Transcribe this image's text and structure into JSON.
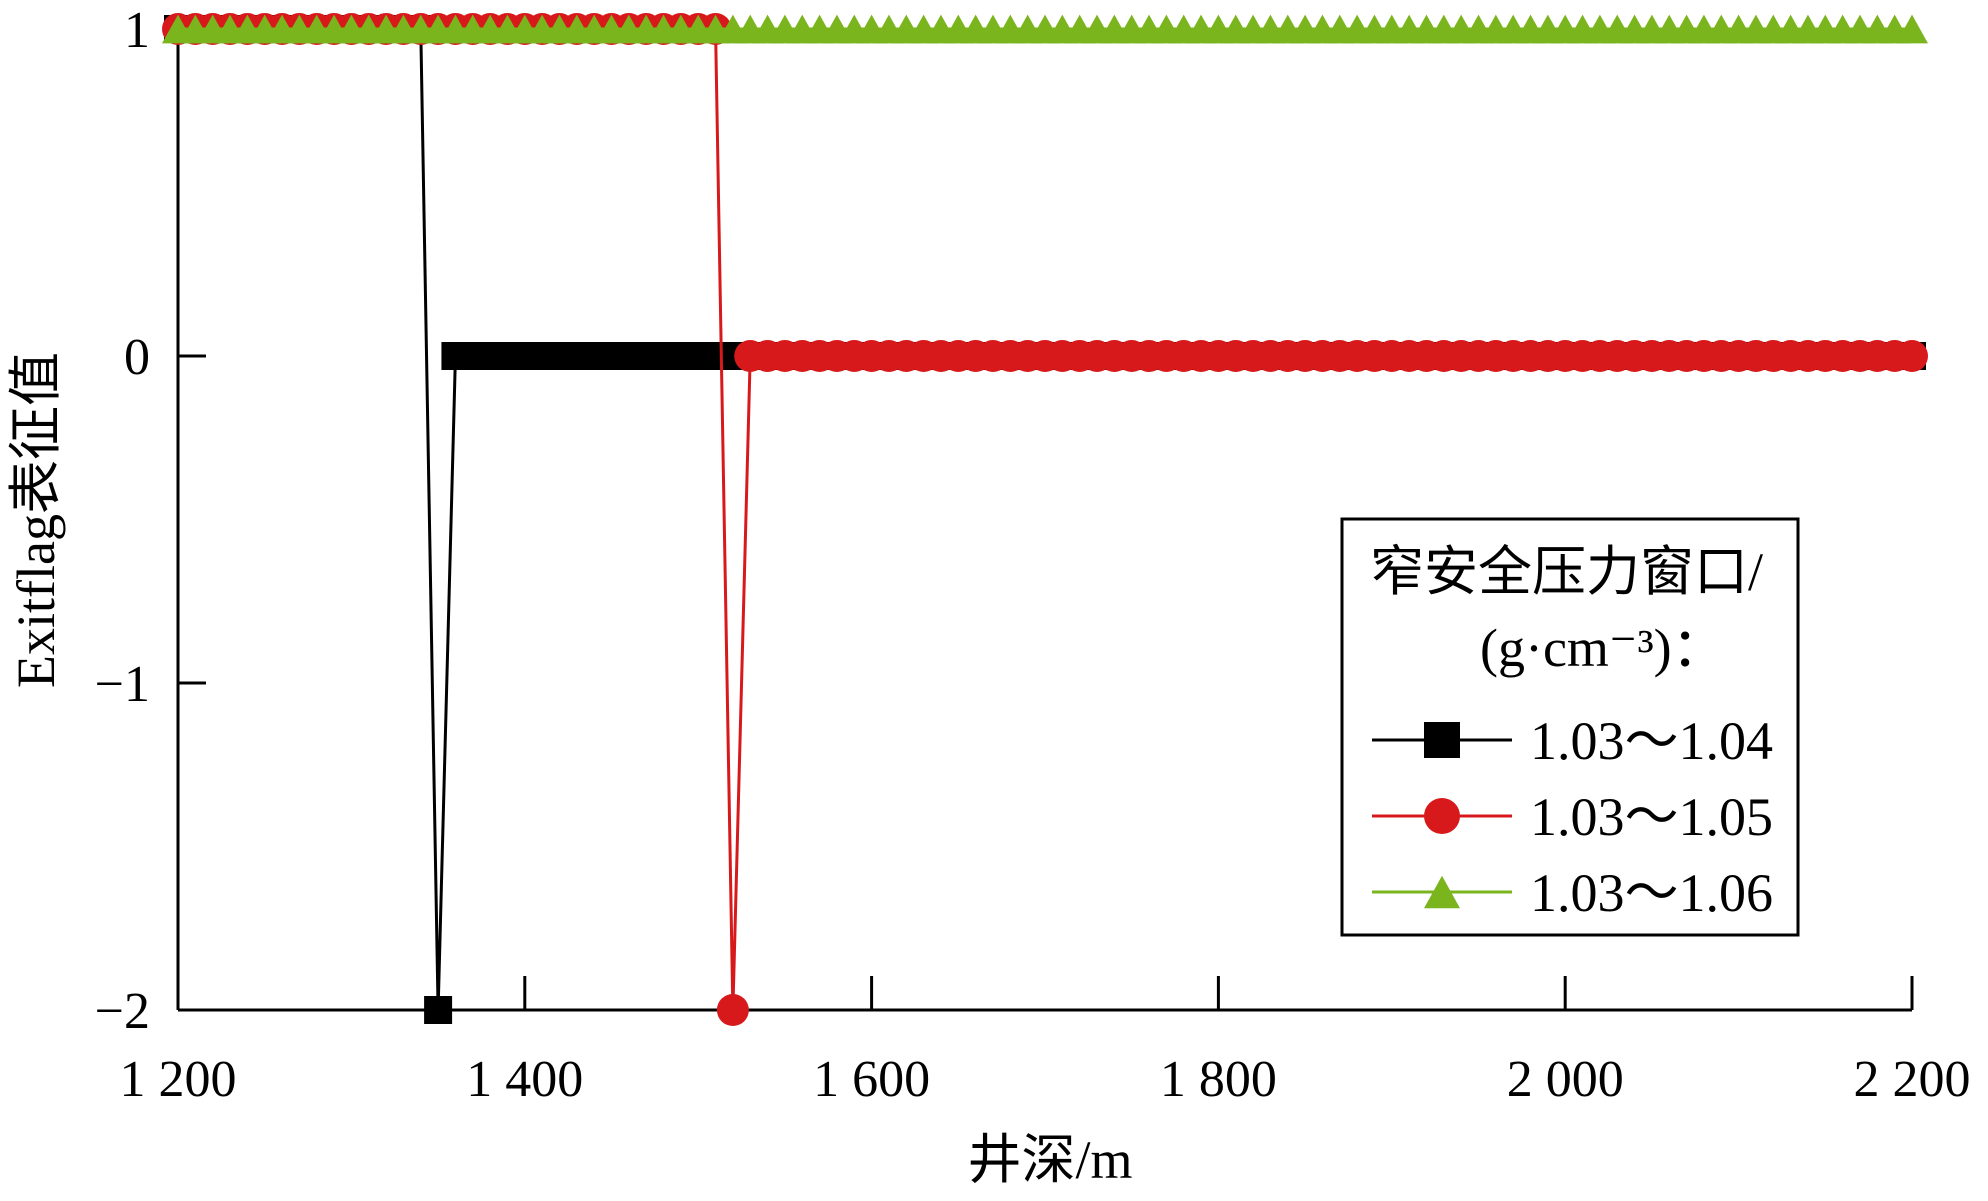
{
  "chart_data": {
    "type": "line",
    "title": "",
    "xlabel": "井深/m",
    "ylabel": "Exitflag表征值",
    "xlim": [
      1200,
      2200
    ],
    "ylim": [
      -2,
      1
    ],
    "x_ticks": [
      1200,
      1400,
      1600,
      1800,
      2000,
      2200
    ],
    "x_tick_labels": [
      "1 200",
      "1 400",
      "1 600",
      "1 800",
      "2 000",
      "2 200"
    ],
    "y_ticks": [
      1,
      0,
      -1,
      -2
    ],
    "y_tick_labels": [
      "1",
      "0",
      "−1",
      "−2"
    ],
    "grid": false,
    "legend": {
      "position": "lower-right",
      "title_line1": "窄安全压力窗口/",
      "title_line2": "(g·cm⁻³)："
    },
    "series": [
      {
        "name": "1.03～1.04",
        "color": "#000000",
        "marker": "square",
        "segments": [
          {
            "x": [
              1200,
              1340
            ],
            "y": [
              1,
              1
            ]
          },
          {
            "x": [
              1340,
              1350,
              1360
            ],
            "y": [
              1,
              -2,
              0
            ]
          },
          {
            "x": [
              1360,
              2200
            ],
            "y": [
              0,
              0
            ]
          }
        ],
        "marker_points": {
          "x_from": 1200,
          "x_to": 1340,
          "y": 1,
          "single_x": 1350,
          "single_y": -2,
          "dense_from": 1360,
          "dense_to": 2200,
          "dense_y": 0
        }
      },
      {
        "name": "1.03～1.05",
        "color": "#d7191c",
        "marker": "circle",
        "segments": [
          {
            "x": [
              1200,
              1510
            ],
            "y": [
              1,
              1
            ]
          },
          {
            "x": [
              1510,
              1520,
              1530
            ],
            "y": [
              1,
              -2,
              0
            ]
          },
          {
            "x": [
              1530,
              2200
            ],
            "y": [
              0,
              0
            ]
          }
        ],
        "marker_points": {
          "x_from": 1200,
          "x_to": 1510,
          "y": 1,
          "single_x": 1520,
          "single_y": -2,
          "dense_from": 1530,
          "dense_to": 2200,
          "dense_y": 0
        }
      },
      {
        "name": "1.03～1.06",
        "color": "#7ab51d",
        "marker": "triangle",
        "segments": [
          {
            "x": [
              1200,
              2200
            ],
            "y": [
              1,
              1
            ]
          }
        ],
        "marker_points": {
          "x_from": 1200,
          "x_to": 2200,
          "y": 1
        }
      }
    ]
  }
}
